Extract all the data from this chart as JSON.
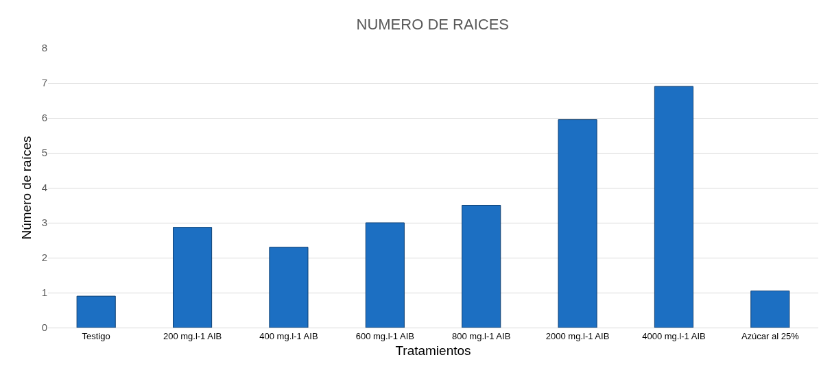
{
  "chart_data": {
    "type": "bar",
    "title": "NUMERO DE RAICES",
    "xlabel": "Tratamientos",
    "ylabel": "Número de raíces",
    "categories": [
      "Testigo",
      "200 mg.l-1 AIB",
      "400 mg.l-1 AIB",
      "600 mg.l-1 AIB",
      "800 mg.l-1 AIB",
      "2000 mg.l-1 AIB",
      "4000 mg.l-1 AIB",
      "Azúcar al 25%"
    ],
    "values": [
      0.9,
      2.87,
      2.3,
      3.0,
      3.5,
      5.95,
      6.9,
      1.05
    ],
    "color": "#1c6fc2",
    "ylim": [
      0,
      8
    ],
    "yticks": [
      0,
      1,
      2,
      3,
      4,
      5,
      6,
      7,
      8
    ],
    "grid": "y"
  }
}
